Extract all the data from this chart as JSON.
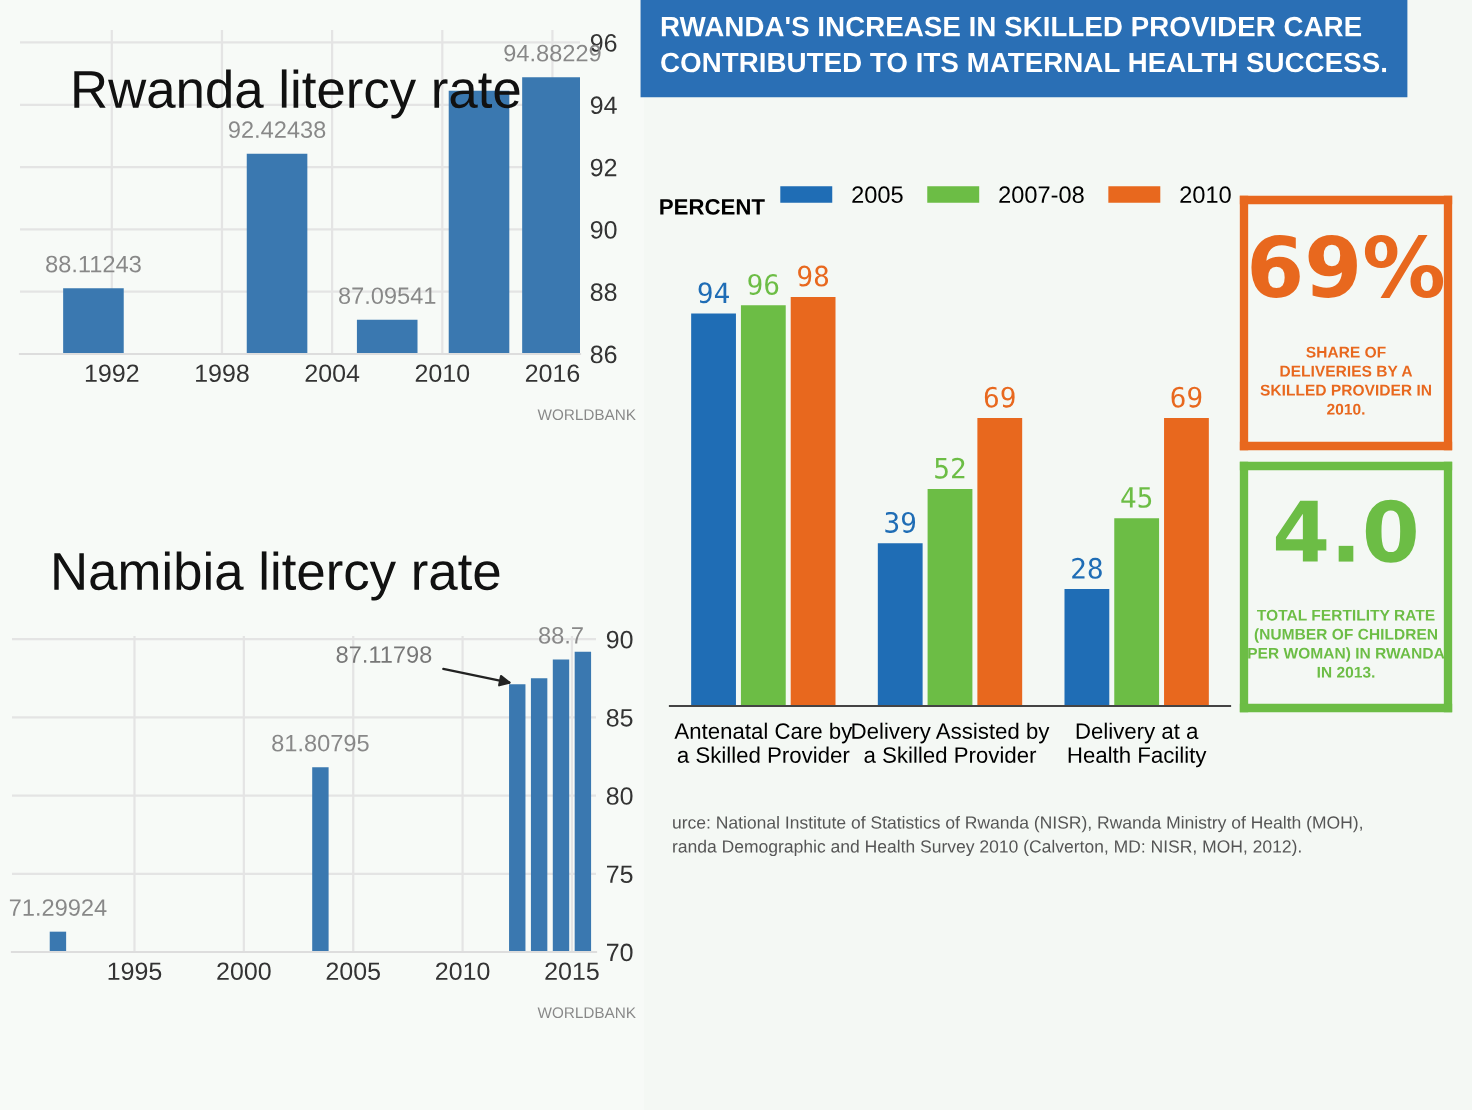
{
  "chart_data": [
    {
      "type": "bar",
      "title": "Rwanda litercy rate",
      "x": [
        1991,
        2001,
        2007,
        2012,
        2016
      ],
      "values": [
        88.11243,
        92.42438,
        87.09541,
        94.45,
        94.88229
      ],
      "value_labels": [
        "88.11243",
        "92.42438",
        "87.09541",
        null,
        "94.88229"
      ],
      "color": "#3a78b0",
      "xlim": [
        1987,
        2017.5
      ],
      "ylim": [
        86,
        96.4
      ],
      "xticks": [
        1992,
        1998,
        2004,
        2010,
        2016
      ],
      "yticks": [
        86,
        88,
        90,
        92,
        94,
        96
      ],
      "grid": true,
      "annotations": [
        "WORLDBANK"
      ]
    },
    {
      "type": "bar",
      "title": "Namibia litercy rate",
      "x": [
        1991.5,
        2003.5,
        2012.5,
        2013.5,
        2014.5,
        2015.5
      ],
      "values": [
        71.29924,
        81.80795,
        87.11798,
        87.5,
        88.7,
        89.2
      ],
      "value_labels": [
        "71.29924",
        "81.80795",
        null,
        null,
        "88.7",
        null
      ],
      "color": "#3a78b0",
      "xlim": [
        1989.4,
        2016.1
      ],
      "ylim": [
        70,
        90.2
      ],
      "xticks": [
        1995,
        2000,
        2005,
        2010,
        2015
      ],
      "yticks": [
        70,
        75,
        80,
        85,
        90
      ],
      "grid": true,
      "annotations": [
        {
          "text": "87.11798",
          "x": 2012.5,
          "y": 87.11798
        },
        "WORLDBANK"
      ]
    },
    {
      "type": "bar",
      "title": "RWANDA'S INCREASE IN SKILLED PROVIDER CARE CONTRIBUTED TO ITS MATERNAL HEALTH SUCCESS.",
      "ylabel": "PERCENT",
      "categories": [
        "Antenatal Care by\na Skilled Provider",
        "Delivery Assisted by\na Skilled Provider",
        "Delivery at a\nHealth Facility"
      ],
      "series": [
        {
          "name": "2005",
          "color": "#1f6db5",
          "values": [
            94,
            39,
            28
          ]
        },
        {
          "name": "2007-08",
          "color": "#6cbd45",
          "values": [
            96,
            52,
            45
          ]
        },
        {
          "name": "2010",
          "color": "#e8681e",
          "values": [
            98,
            69,
            69
          ]
        }
      ],
      "data_labels": true,
      "legend": "top",
      "grid": false,
      "annotations": [
        "urce: National Institute of Statistics of Rwanda (NISR), Rwanda Ministry of Health (MOH),\nranda Demographic and Health Survey 2010 (Calverton, MD: NISR, MOH, 2012)."
      ]
    },
    {
      "type": "other",
      "title": "69%",
      "subtitle": "SHARE OF\nDELIVERIES BY A\nSKILLED PROVIDER IN\n2010.",
      "color": "#e8681e"
    },
    {
      "type": "other",
      "title": "4.0",
      "subtitle": "TOTAL FERTILITY RATE\n(NUMBER OF CHILDREN\nPER WOMAN) IN RWANDA\nIN 2013.",
      "color": "#6cbd45"
    }
  ]
}
